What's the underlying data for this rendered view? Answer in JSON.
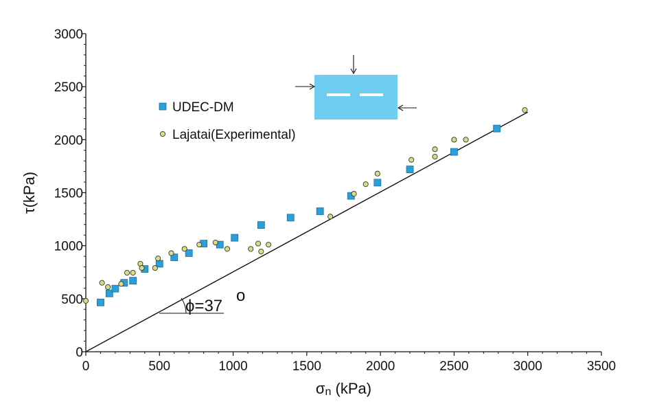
{
  "chart_data": {
    "type": "scatter",
    "xlabel_main": "σ",
    "xlabel_sub": "n",
    "xlabel_unit": " (kPa)",
    "ylabel": "τ(kPa)",
    "xlim": [
      0,
      3500
    ],
    "ylim": [
      0,
      3000
    ],
    "xticks": [
      "0",
      "500",
      "1000",
      "1500",
      "2000",
      "2500",
      "3000",
      "3500"
    ],
    "yticks": [
      "0",
      "500",
      "1000",
      "1500",
      "2000",
      "2500",
      "3000"
    ],
    "grid": false,
    "legend_position": "upper-left",
    "series": [
      {
        "name": "UDEC-DM",
        "marker": "square",
        "color": "#2b9fd9",
        "points": [
          [
            100,
            465
          ],
          [
            160,
            550
          ],
          [
            200,
            595
          ],
          [
            260,
            650
          ],
          [
            320,
            670
          ],
          [
            400,
            780
          ],
          [
            500,
            830
          ],
          [
            600,
            890
          ],
          [
            700,
            930
          ],
          [
            800,
            1020
          ],
          [
            910,
            1010
          ],
          [
            1010,
            1075
          ],
          [
            1190,
            1195
          ],
          [
            1390,
            1265
          ],
          [
            1590,
            1325
          ],
          [
            1800,
            1470
          ],
          [
            1980,
            1595
          ],
          [
            2200,
            1720
          ],
          [
            2500,
            1885
          ],
          [
            2790,
            2105
          ]
        ]
      },
      {
        "name": "Lajatai(Experimental)",
        "marker": "circle",
        "color": "#d8dc86",
        "points": [
          [
            0,
            480
          ],
          [
            110,
            650
          ],
          [
            150,
            610
          ],
          [
            240,
            640
          ],
          [
            280,
            745
          ],
          [
            320,
            745
          ],
          [
            370,
            830
          ],
          [
            380,
            790
          ],
          [
            470,
            790
          ],
          [
            490,
            880
          ],
          [
            580,
            930
          ],
          [
            670,
            970
          ],
          [
            770,
            1010
          ],
          [
            880,
            1030
          ],
          [
            960,
            970
          ],
          [
            1120,
            970
          ],
          [
            1170,
            1020
          ],
          [
            1190,
            945
          ],
          [
            1240,
            1010
          ],
          [
            1660,
            1275
          ],
          [
            1820,
            1490
          ],
          [
            1900,
            1580
          ],
          [
            1980,
            1680
          ],
          [
            2210,
            1810
          ],
          [
            2370,
            1910
          ],
          [
            2370,
            1840
          ],
          [
            2500,
            2000
          ],
          [
            2580,
            2000
          ],
          [
            2980,
            2280
          ]
        ]
      }
    ],
    "fit_line": {
      "x": [
        0,
        3000
      ],
      "y": [
        0,
        2260
      ]
    },
    "annotation": {
      "phi_label": "ϕ=37",
      "degree": "o",
      "angle_deg": 37,
      "x": 430,
      "y": 330
    }
  }
}
